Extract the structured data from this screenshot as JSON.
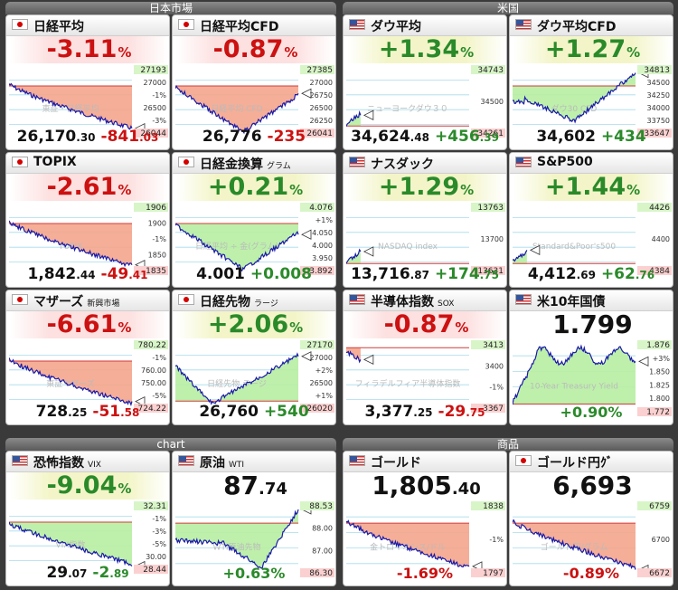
{
  "sections": {
    "japan": "日本市場",
    "us": "米国",
    "chart": "chart",
    "commodities": "商品"
  },
  "tiles": {
    "nikkei": {
      "name": "日経平均",
      "pct": "-3.11",
      "unit": "%",
      "price_int": "26,170",
      "price_dec": ".30",
      "chg_int": "-841",
      "chg_dec": ".03",
      "ticks": [
        "27193",
        "27000",
        "-1%",
        "26500",
        "-3%",
        "26044"
      ],
      "watermark": "東証・日経平均"
    },
    "nikkei_cfd": {
      "name": "日経平均CFD",
      "pct": "-0.87",
      "unit": "%",
      "price_int": "26,776",
      "price_dec": "",
      "chg_int": "-235",
      "chg_dec": "",
      "ticks": [
        "27385",
        "27000",
        "26750",
        "26500",
        "26250",
        "26041"
      ],
      "watermark": "日経平均 CFD"
    },
    "dow": {
      "name": "ダウ平均",
      "pct": "+1.34",
      "unit": "%",
      "price_int": "34,624",
      "price_dec": ".48",
      "chg_int": "+456",
      "chg_dec": ".39",
      "ticks": [
        "34743",
        "34500",
        "34261"
      ],
      "watermark": "ニューヨークダウ３０"
    },
    "dow_cfd": {
      "name": "ダウ平均CFD",
      "pct": "+1.27",
      "unit": "%",
      "price_int": "34,602",
      "price_dec": "",
      "chg_int": "+434",
      "chg_dec": "",
      "ticks": [
        "34813",
        "34500",
        "34250",
        "34000",
        "33750",
        "33647"
      ],
      "watermark": "ダウ30 CFD"
    },
    "topix": {
      "name": "TOPIX",
      "pct": "-2.61",
      "unit": "%",
      "price_int": "1,842",
      "price_dec": ".44",
      "chg_int": "-49",
      "chg_dec": ".41",
      "ticks": [
        "1906",
        "1900",
        "-1%",
        "1850",
        "1835"
      ],
      "watermark": "TOPIX"
    },
    "gold_jpy": {
      "name": "日経金換算",
      "sub": "グラム",
      "pct": "+0.21",
      "unit": "%",
      "price_int": "4.001",
      "price_dec": "",
      "chg_int": "+0.008",
      "chg_dec": "",
      "ticks": [
        "4.076",
        "+1%",
        "4.050",
        "4.000",
        "3.950",
        "3.892"
      ],
      "watermark": "日経平均 ÷ 金(グラム)"
    },
    "nasdaq": {
      "name": "ナスダック",
      "pct": "+1.29",
      "unit": "%",
      "price_int": "13,716",
      "price_dec": ".87",
      "chg_int": "+174",
      "chg_dec": ".75",
      "ticks": [
        "13763",
        "13700",
        "13631"
      ],
      "watermark": "NASDAQ index"
    },
    "sp500": {
      "name": "S&P500",
      "pct": "+1.44",
      "unit": "%",
      "price_int": "4,412",
      "price_dec": ".69",
      "chg_int": "+62",
      "chg_dec": ".76",
      "ticks": [
        "4426",
        "4400",
        "4384"
      ],
      "watermark": "Standard&Poor's500"
    },
    "mothers": {
      "name": "マザーズ",
      "sub": "新興市場",
      "pct": "-6.61",
      "unit": "%",
      "price_int": "728",
      "price_dec": ".25",
      "chg_int": "-51",
      "chg_dec": ".58",
      "ticks": [
        "780.22",
        "-1%",
        "760.00",
        "750.00",
        "-5%",
        "724.22"
      ],
      "watermark": "東証マザーズ"
    },
    "nikkei_fut": {
      "name": "日経先物",
      "sub": "ラージ",
      "pct": "+2.06",
      "unit": "%",
      "price_int": "26,760",
      "price_dec": "",
      "chg_int": "+540",
      "chg_dec": "",
      "ticks": [
        "27170",
        "27000",
        "+2%",
        "26500",
        "+1%",
        "26020"
      ],
      "watermark": "日経先物 ラージ"
    },
    "sox": {
      "name": "半導体指数",
      "sub": "SOX",
      "pct": "-0.87",
      "unit": "%",
      "price_int": "3,377",
      "price_dec": ".25",
      "chg_int": "-29",
      "chg_dec": ".75",
      "ticks": [
        "3413",
        "3400",
        "-1%",
        "3367"
      ],
      "watermark": "フィラデルフィア半導体指数"
    },
    "us10y": {
      "name": "米10年国債",
      "price": "1.799",
      "chg": "+0.90%",
      "ticks": [
        "1.876",
        "+3%",
        "1.850",
        "1.825",
        "1.800",
        "1.772"
      ],
      "watermark": "10-Year Treasury Yield"
    },
    "vix": {
      "name": "恐怖指数",
      "sub": "VIX",
      "pct": "-9.04",
      "unit": "%",
      "price_int": "29",
      "price_dec": ".07",
      "chg_int": "-2",
      "chg_dec": ".89",
      "ticks": [
        "32.31",
        "-1%",
        "-3%",
        "-5%",
        "30.00",
        "28.44"
      ],
      "watermark": "VIX指数"
    },
    "oil": {
      "name": "原油",
      "sub": "WTI",
      "price_int": "87",
      "price_dec": ".74",
      "chg": "+0.63%",
      "ticks": [
        "88.53",
        "88.00",
        "87.00",
        "86.30"
      ],
      "watermark": "WTI原油先物"
    },
    "gold": {
      "name": "ゴールド",
      "price_int": "1,805",
      "price_dec": ".40",
      "chg": "-1.69%",
      "ticks": [
        "1838",
        "-1%",
        "1797"
      ],
      "watermark": "金トロイオンス/ドル"
    },
    "gold_yen": {
      "name": "ゴールド円ｸﾞ",
      "price": "6,693",
      "chg": "-0.89%",
      "ticks": [
        "6759",
        "6700",
        "6672"
      ],
      "watermark": "ゴールド円/グラム"
    }
  },
  "colors": {
    "negative": "#cc1111",
    "positive": "#2a8a2a",
    "neg_fill": "#f4a58c",
    "pos_fill": "#b7eea2",
    "line": "#1a1aa8",
    "ref_line": "#d23a3a"
  }
}
